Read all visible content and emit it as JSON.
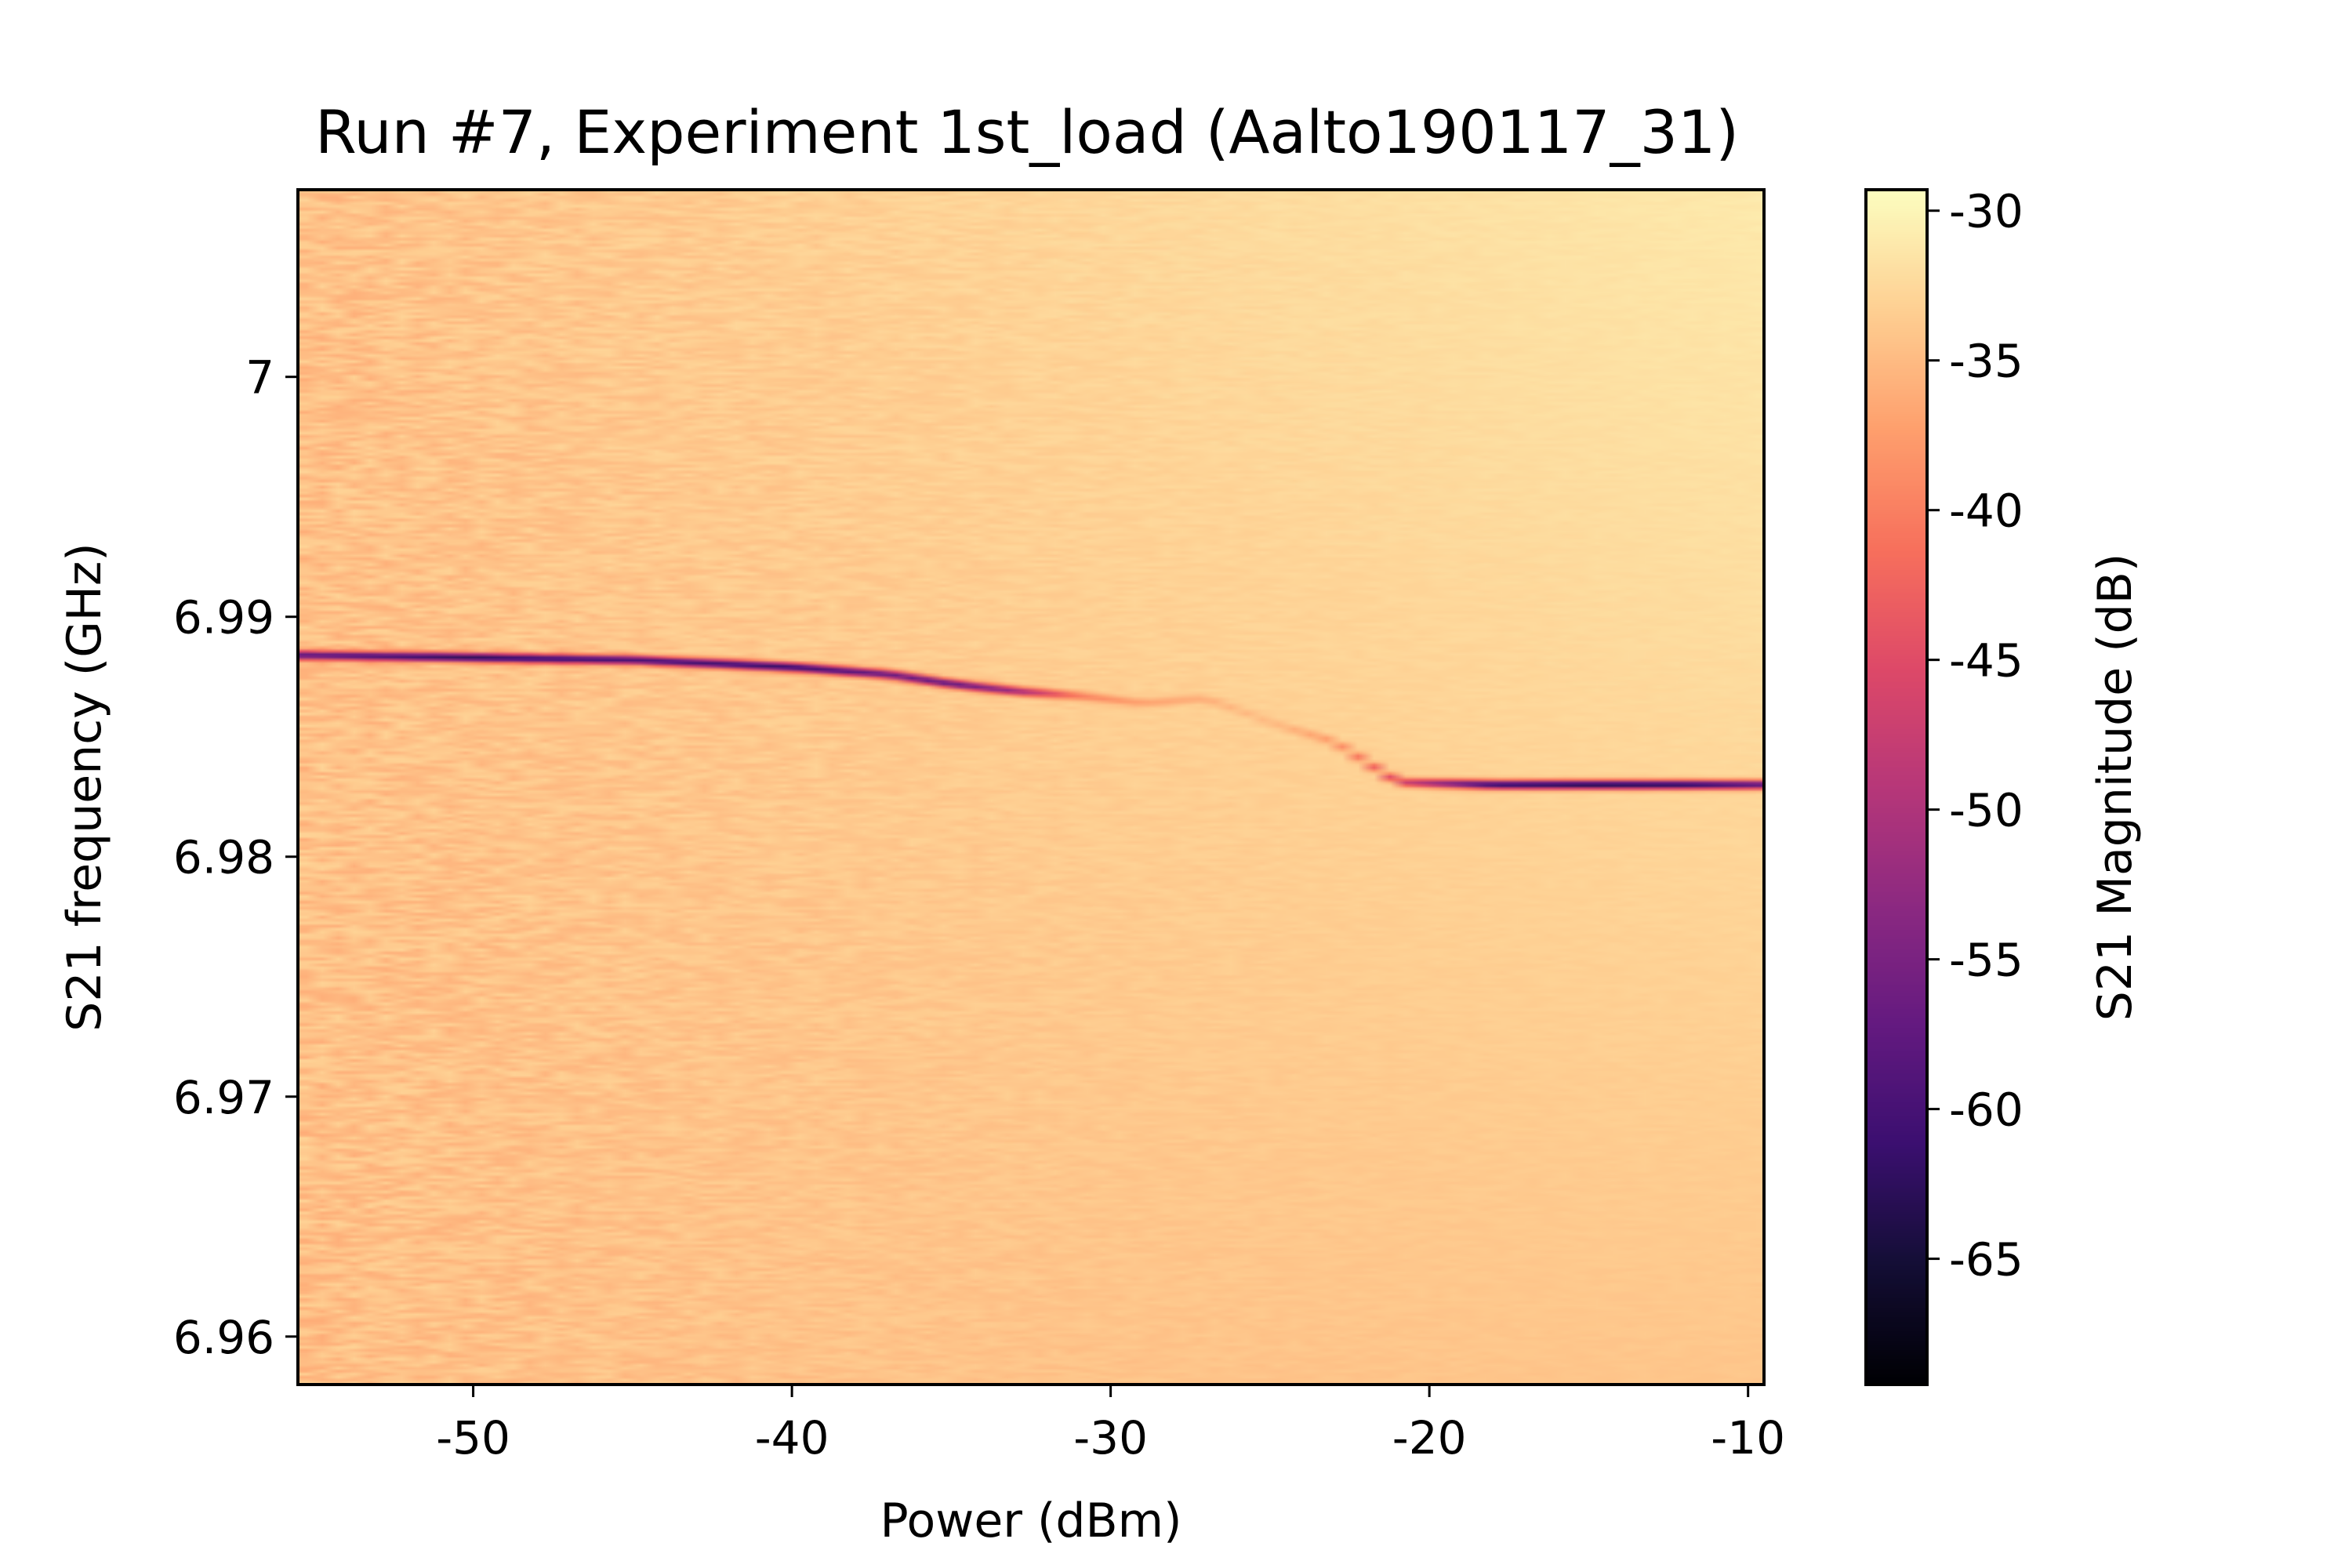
{
  "chart_data": {
    "type": "heatmap",
    "title": "Run #7, Experiment 1st_load (Aalto190117_31)",
    "xlabel": "Power (dBm)",
    "ylabel": "S21 frequency (GHz)",
    "colorbar_label": "S21 Magnitude (dB)",
    "colormap": "magma",
    "xlim": [
      -55.5,
      -9.5
    ],
    "ylim": [
      6.958,
      7.0078
    ],
    "clim": [
      -69.2,
      -29.3
    ],
    "x_ticks": [
      {
        "value": -50,
        "label": "-50"
      },
      {
        "value": -40,
        "label": "-40"
      },
      {
        "value": -30,
        "label": "-30"
      },
      {
        "value": -20,
        "label": "-20"
      },
      {
        "value": -10,
        "label": "-10"
      }
    ],
    "y_ticks": [
      {
        "value": 6.96,
        "label": "6.96"
      },
      {
        "value": 6.97,
        "label": "6.97"
      },
      {
        "value": 6.98,
        "label": "6.98"
      },
      {
        "value": 6.99,
        "label": "6.99"
      },
      {
        "value": 7.0,
        "label": "7"
      }
    ],
    "colorbar_ticks": [
      {
        "value": -30,
        "label": "-30"
      },
      {
        "value": -35,
        "label": "-35"
      },
      {
        "value": -40,
        "label": "-40"
      },
      {
        "value": -45,
        "label": "-45"
      },
      {
        "value": -50,
        "label": "-50"
      },
      {
        "value": -55,
        "label": "-55"
      },
      {
        "value": -60,
        "label": "-60"
      },
      {
        "value": -65,
        "label": "-65"
      }
    ],
    "resonance": {
      "power_dbm": [
        -55.5,
        -50,
        -45,
        -40,
        -37,
        -35,
        -33,
        -31,
        -29,
        -27,
        -25,
        -23,
        -21,
        -18,
        -15,
        -12,
        -9.5
      ],
      "frequency_ghz": [
        6.9884,
        6.9883,
        6.9882,
        6.9879,
        6.9876,
        6.9872,
        6.9869,
        6.9867,
        6.9864,
        6.9866,
        6.9856,
        6.9848,
        6.9831,
        6.983,
        6.983,
        6.983,
        6.983
      ],
      "min_magnitude_db": [
        -58,
        -63,
        -60,
        -62,
        -57,
        -58,
        -52,
        -40,
        -37,
        -36,
        -35,
        -38,
        -46,
        -62,
        -64,
        -63,
        -58
      ]
    },
    "background_magnitude_db": {
      "low_power": -34.5,
      "high_power_top": -31,
      "high_power_bottom": -34
    },
    "grid": false,
    "colorbar_position": "right"
  }
}
